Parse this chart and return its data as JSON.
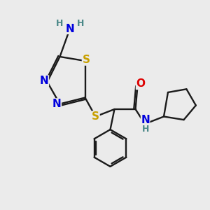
{
  "bg_color": "#ebebeb",
  "bond_color": "#1a1a1a",
  "N_color": "#0000dd",
  "S_color": "#c8a000",
  "O_color": "#dd0000",
  "H_color": "#4a8888",
  "lw": 1.7,
  "fs": 11,
  "fsH": 9,
  "xlim": [
    0,
    10
  ],
  "ylim": [
    0,
    10
  ]
}
